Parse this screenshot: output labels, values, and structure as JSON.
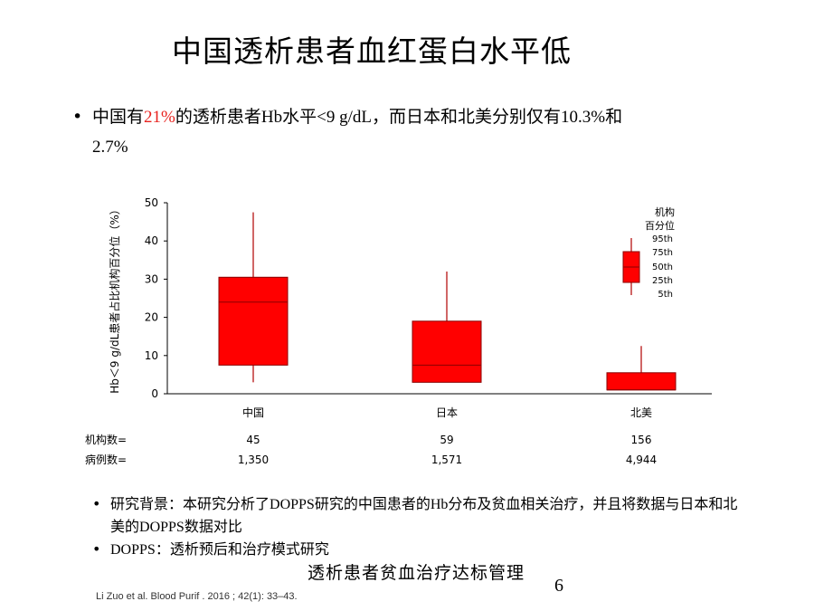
{
  "slide": {
    "title": "中国透析患者血红蛋白水平低",
    "bullet": {
      "part1": "中国有",
      "highlight": "21%",
      "part2": "的透析患者",
      "part3": "Hb",
      "part4": "水平",
      "part5": "<9 g/dL",
      "part6": "，而日本和北美分别仅有",
      "part7": "10.3%",
      "part8": "和",
      "part9": "2.7%"
    },
    "sub_bullets": [
      {
        "a": "研究背景：本研究分析了",
        "b": "DOPPS",
        "c": "研究的中国患者的",
        "d": "Hb",
        "e": "分布及贫血相关治疗，并且将数据与日本和北美的",
        "f": "DOPPS",
        "g": "数据对比"
      },
      {
        "a": "DOPPS",
        "b": "：透析预后和治疗模式研究"
      }
    ],
    "citation": "Li Zuo et al. Blood Purif . 2016 ; 42(1): 33–43.",
    "footer": "透析患者贫血治疗达标管理",
    "page_number": "6"
  },
  "table_rows": {
    "facilities_label": "机构数=",
    "patients_label": "病例数=",
    "facilities": [
      "45",
      "59",
      "156"
    ],
    "patients": [
      "1,350",
      "1,571",
      "4,944"
    ]
  },
  "legend": {
    "title_line1": "机构",
    "title_line2": "百分位",
    "labels": [
      "95th",
      "75th",
      "50th",
      "25th",
      "5th"
    ]
  },
  "colors": {
    "box": "#ff0000",
    "box_edge": "#b00000",
    "highlight": "#e8231f"
  },
  "chart_data": {
    "type": "boxplot",
    "ylabel": "Hb＜9 g/dL患者占比机构百分位（%）",
    "ylim": [
      0,
      50
    ],
    "yticks": [
      "0",
      "10",
      "20",
      "30",
      "40",
      "50"
    ],
    "categories": [
      "中国",
      "日本",
      "北美"
    ],
    "series": [
      {
        "p5": 3,
        "p25": 7.5,
        "p50": 24,
        "p75": 30.5,
        "p95": 47.5
      },
      {
        "p5": 3,
        "p25": 3,
        "p50": 7.5,
        "p75": 19,
        "p95": 32
      },
      {
        "p5": 1,
        "p25": 1,
        "p50": 1,
        "p75": 5.5,
        "p95": 12.5
      }
    ],
    "grid": false,
    "legend": "top-right"
  }
}
